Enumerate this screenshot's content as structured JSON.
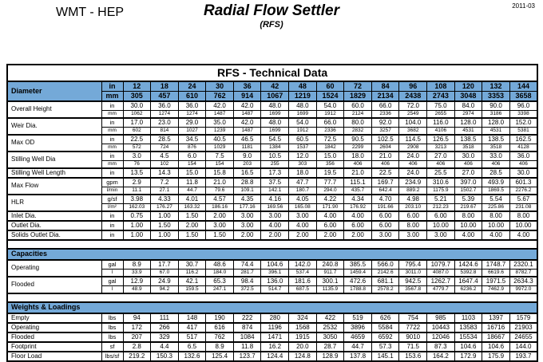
{
  "colors": {
    "header_blue": "#74a9d8",
    "border": "#000000",
    "page_bg": "#ffffff"
  },
  "page_header": {
    "brand": "WMT - HEP",
    "title": "Radial Flow Settler",
    "subtitle": "(RFS)",
    "date": "2011-03"
  },
  "table": {
    "title": "RFS - Technical Data",
    "diameter": {
      "label": "Diameter",
      "rows": [
        {
          "unit": "in",
          "values": [
            "12",
            "18",
            "24",
            "30",
            "36",
            "42",
            "48",
            "60",
            "72",
            "84",
            "96",
            "108",
            "120",
            "132",
            "144"
          ]
        },
        {
          "unit": "mm",
          "values": [
            "305",
            "457",
            "610",
            "762",
            "914",
            "1067",
            "1219",
            "1524",
            "1829",
            "2134",
            "2438",
            "2743",
            "3048",
            "3353",
            "3658"
          ]
        }
      ]
    },
    "body": [
      {
        "type": "group",
        "label": "Overall Height",
        "rows": [
          {
            "unit": "in",
            "values": [
              "30.0",
              "36.0",
              "36.0",
              "42.0",
              "42.0",
              "48.0",
              "48.0",
              "54.0",
              "60.0",
              "66.0",
              "72.0",
              "75.0",
              "84.0",
              "90.0",
              "96.0"
            ]
          },
          {
            "unit": "mm",
            "small": true,
            "values": [
              "1062",
              "1274",
              "1274",
              "1487",
              "1487",
              "1699",
              "1699",
              "1912",
              "2124",
              "2336",
              "2549",
              "2655",
              "2974",
              "3186",
              "3398"
            ]
          }
        ]
      },
      {
        "type": "group",
        "label": "Weir Dia.",
        "rows": [
          {
            "unit": "in",
            "values": [
              "17.0",
              "23.0",
              "29.0",
              "35.0",
              "42.0",
              "48.0",
              "54.0",
              "66.0",
              "80.0",
              "92.0",
              "104.0",
              "116.0",
              "128.0",
              "128.0",
              "152.0"
            ]
          },
          {
            "unit": "mm",
            "small": true,
            "values": [
              "602",
              "814",
              "1027",
              "1239",
              "1487",
              "1699",
              "1912",
              "2336",
              "2832",
              "3257",
              "3682",
              "4106",
              "4531",
              "4531",
              "5381"
            ]
          }
        ]
      },
      {
        "type": "group",
        "label": "Max OD",
        "rows": [
          {
            "unit": "in",
            "values": [
              "22.5",
              "28.5",
              "34.5",
              "40.5",
              "46.5",
              "54.5",
              "60.5",
              "72.5",
              "90.5",
              "102.5",
              "114.5",
              "126.5",
              "138.5",
              "138.5",
              "162.5"
            ]
          },
          {
            "unit": "mm",
            "small": true,
            "values": [
              "572",
              "724",
              "876",
              "1029",
              "1181",
              "1384",
              "1537",
              "1842",
              "2299",
              "2604",
              "2908",
              "3213",
              "3518",
              "3518",
              "4128"
            ]
          }
        ]
      },
      {
        "type": "group",
        "label": "Stilling Well Dia",
        "rows": [
          {
            "unit": "in",
            "values": [
              "3.0",
              "4.5",
              "6.0",
              "7.5",
              "9.0",
              "10.5",
              "12.0",
              "15.0",
              "18.0",
              "21.0",
              "24.0",
              "27.0",
              "30.0",
              "33.0",
              "36.0"
            ]
          },
          {
            "unit": "mm",
            "small": true,
            "values": [
              "76",
              "102",
              "154",
              "154",
              "203",
              "255",
              "303",
              "356",
              "406",
              "406",
              "406",
              "406",
              "406",
              "406",
              "406"
            ]
          }
        ]
      },
      {
        "type": "group",
        "label": "Stilling Well Length",
        "rows": [
          {
            "unit": "in",
            "values": [
              "13.5",
              "14.3",
              "15.0",
              "15.8",
              "16.5",
              "17.3",
              "18.0",
              "19.5",
              "21.0",
              "22.5",
              "24.0",
              "25.5",
              "27.0",
              "28.5",
              "30.0"
            ]
          }
        ]
      },
      {
        "type": "group",
        "label": "Max Flow",
        "rows": [
          {
            "unit": "gpm",
            "values": [
              "2.9",
              "7.2",
              "11.8",
              "21.0",
              "28.8",
              "37.5",
              "47.7",
              "77.7",
              "115.1",
              "169.7",
              "234.9",
              "310.6",
              "397.0",
              "493.9",
              "601.3"
            ]
          },
          {
            "unit": "l/min",
            "small": true,
            "values": [
              "11.1",
              "27.1",
              "44.7",
              "79.6",
              "109.1",
              "142.1",
              "180.7",
              "294.0",
              "435.7",
              "642.4",
              "889.2",
              "1175.9",
              "1502.7",
              "1869.5",
              "2276.2"
            ]
          }
        ]
      },
      {
        "type": "group",
        "label": "HLR",
        "rows": [
          {
            "unit": "g/sf",
            "values": [
              "3.98",
              "4.33",
              "4.01",
              "4.57",
              "4.35",
              "4.16",
              "4.05",
              "4.22",
              "4.34",
              "4.70",
              "4.98",
              "5.21",
              "5.39",
              "5.54",
              "5.67"
            ]
          },
          {
            "unit": "l/m²",
            "small": true,
            "values": [
              "162.03",
              "176.27",
              "163.32",
              "186.16",
              "177.16",
              "169.56",
              "165.08",
              "171.90",
              "176.92",
              "191.66",
              "203.10",
              "212.23",
              "219.67",
              "225.86",
              "231.08"
            ]
          }
        ]
      },
      {
        "type": "group",
        "label": "Inlet Dia.",
        "rows": [
          {
            "unit": "in",
            "values": [
              "0.75",
              "1.00",
              "1.50",
              "2.00",
              "3.00",
              "3.00",
              "3.00",
              "4.00",
              "4.00",
              "6.00",
              "6.00",
              "6.00",
              "8.00",
              "8.00",
              "8.00"
            ]
          }
        ]
      },
      {
        "type": "group",
        "label": "Outlet Dia.",
        "rows": [
          {
            "unit": "in",
            "values": [
              "1.00",
              "1.50",
              "2.00",
              "3.00",
              "3.00",
              "4.00",
              "4.00",
              "6.00",
              "6.00",
              "6.00",
              "8.00",
              "10.00",
              "10.00",
              "10.00",
              "10.00"
            ]
          }
        ]
      },
      {
        "type": "group",
        "label": "Solids Outlet Dia.",
        "rows": [
          {
            "unit": "in",
            "values": [
              "1.00",
              "1.00",
              "1.50",
              "1.50",
              "2.00",
              "2.00",
              "2.00",
              "2.00",
              "2.00",
              "3.00",
              "3.00",
              "3.00",
              "4.00",
              "4.00",
              "4.00"
            ]
          }
        ]
      },
      {
        "type": "spacer"
      },
      {
        "type": "section",
        "title": "Capacities"
      },
      {
        "type": "group",
        "label": "Operating",
        "rows": [
          {
            "unit": "gal",
            "values": [
              "8.9",
              "17.7",
              "30.7",
              "48.6",
              "74.4",
              "104.6",
              "142.0",
              "240.8",
              "385.5",
              "566.0",
              "795.4",
              "1079.7",
              "1424.6",
              "1748.7",
              "2320.1"
            ]
          },
          {
            "unit": "l",
            "small": true,
            "values": [
              "33.9",
              "67.0",
              "116.2",
              "184.0",
              "281.7",
              "396.1",
              "537.4",
              "911.7",
              "1459.4",
              "2142.6",
              "3011.0",
              "4087.0",
              "5392.8",
              "6619.6",
              "8782.7"
            ]
          }
        ]
      },
      {
        "type": "group",
        "label": "Flooded",
        "rows": [
          {
            "unit": "gal",
            "values": [
              "12.9",
              "24.9",
              "42.1",
              "65.3",
              "98.4",
              "136.0",
              "181.6",
              "300.1",
              "472.6",
              "681.1",
              "942.5",
              "1262.7",
              "1647.4",
              "1971.5",
              "2634.3"
            ]
          },
          {
            "unit": "l",
            "small": true,
            "values": [
              "48.9",
              "94.2",
              "159.5",
              "247.1",
              "372.5",
              "514.7",
              "687.5",
              "1135.9",
              "1788.8",
              "2578.2",
              "3567.8",
              "4779.7",
              "6236.2",
              "7462.9",
              "9972.0"
            ]
          }
        ]
      },
      {
        "type": "spacer"
      },
      {
        "type": "section",
        "title": "Weights & Loadings"
      },
      {
        "type": "group",
        "label": "Empty",
        "rows": [
          {
            "unit": "lbs",
            "values": [
              "94",
              "111",
              "148",
              "190",
              "222",
              "280",
              "324",
              "422",
              "519",
              "626",
              "754",
              "985",
              "1103",
              "1397",
              "1579"
            ]
          }
        ]
      },
      {
        "type": "group",
        "label": "Operating",
        "rows": [
          {
            "unit": "lbs",
            "values": [
              "172",
              "266",
              "417",
              "616",
              "874",
              "1196",
              "1568",
              "2532",
              "3896",
              "5584",
              "7722",
              "10443",
              "13583",
              "16716",
              "21903"
            ]
          }
        ]
      },
      {
        "type": "group",
        "label": "Flooded",
        "rows": [
          {
            "unit": "lbs",
            "values": [
              "207",
              "329",
              "517",
              "762",
              "1084",
              "1471",
              "1915",
              "3050",
              "4659",
              "6592",
              "9010",
              "12046",
              "15534",
              "18667",
              "24655"
            ]
          }
        ]
      },
      {
        "type": "group",
        "label": "Footprint",
        "rows": [
          {
            "unit": "sf",
            "values": [
              "2.8",
              "4.4",
              "6.5",
              "8.9",
              "11.8",
              "16.2",
              "20.0",
              "28.7",
              "44.7",
              "57.3",
              "71.5",
              "87.3",
              "104.6",
              "104.6",
              "144.0"
            ]
          }
        ]
      },
      {
        "type": "group",
        "label": "Floor Load",
        "rows": [
          {
            "unit": "lbs/sf",
            "values": [
              "219.2",
              "150.3",
              "132.6",
              "125.4",
              "123.7",
              "124.4",
              "124.8",
              "128.9",
              "137.8",
              "145.1",
              "153.6",
              "164.2",
              "172.9",
              "175.9",
              "193.7"
            ]
          }
        ]
      }
    ]
  }
}
